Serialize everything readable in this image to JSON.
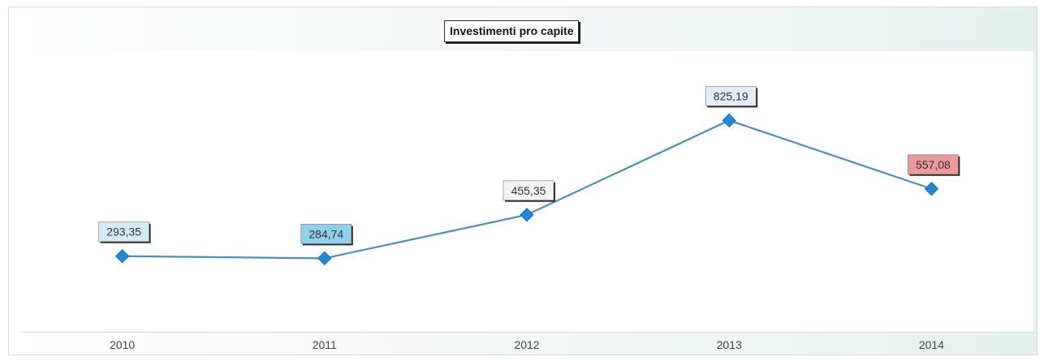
{
  "chart_data": {
    "type": "line",
    "title": "Investimenti pro capite",
    "xlabel": "",
    "ylabel": "",
    "categories": [
      "2010",
      "2011",
      "2012",
      "2013",
      "2014"
    ],
    "series": [
      {
        "values": [
          293.35,
          284.74,
          455.35,
          825.19,
          557.08
        ],
        "labels": [
          "293,35",
          "284,74",
          "455,35",
          "825,19",
          "557,08"
        ],
        "color": "#4a90b8",
        "marker_color": "#1f8ad6"
      }
    ],
    "ylim": [
      0,
      1100
    ],
    "grid": false,
    "legend": "none",
    "label_box_colors": [
      "#d4ecf6",
      "#8fd0ec",
      "#f2f2f2",
      "#e6ecf4",
      "#ef9a9a"
    ]
  }
}
